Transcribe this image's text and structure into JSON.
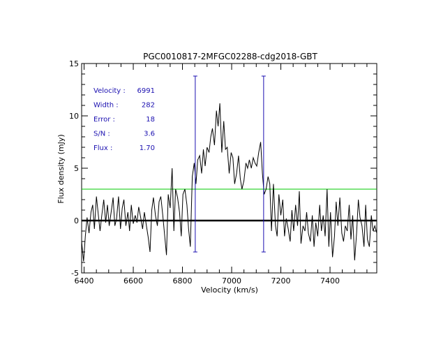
{
  "chart_data": {
    "type": "line",
    "title": "PGC0010817-2MFGC02288-cdg2018-GBT",
    "xlabel": "Velocity (km/s)",
    "ylabel": "Flux density (mJy)",
    "xlim": [
      6390,
      7590
    ],
    "ylim": [
      -5,
      15
    ],
    "x_ticks": [
      6400,
      6600,
      6800,
      7000,
      7200,
      7400
    ],
    "x_tick_labels": [
      "6400",
      "6600",
      "6800",
      "7000",
      "7200",
      "7400"
    ],
    "y_ticks": [
      -5,
      0,
      5,
      10,
      15
    ],
    "y_tick_labels": [
      "-5",
      "0",
      "5",
      "10",
      "15"
    ],
    "zero_line": 0,
    "noise_line": 3.0,
    "line_markers": [
      {
        "name": "low-velocity edge",
        "x": 6852,
        "y_range": [
          -3.0,
          13.8
        ]
      },
      {
        "name": "high-velocity edge",
        "x": 7130,
        "y_range": [
          -3.0,
          13.8
        ]
      }
    ],
    "annotations": [
      {
        "label": "Velocity :",
        "value": "6991"
      },
      {
        "label": "Width  :",
        "value": "282"
      },
      {
        "label": "Error  :",
        "value": "18"
      },
      {
        "label": "S/N    :",
        "value": "3.6"
      },
      {
        "label": "Flux   :",
        "value": "1.70"
      }
    ],
    "series": [
      {
        "name": "spectrum",
        "x": [
          6390,
          6398,
          6405,
          6412,
          6420,
          6428,
          6435,
          6442,
          6450,
          6458,
          6465,
          6472,
          6480,
          6488,
          6495,
          6502,
          6510,
          6518,
          6525,
          6532,
          6540,
          6548,
          6555,
          6562,
          6570,
          6578,
          6585,
          6592,
          6600,
          6608,
          6615,
          6622,
          6630,
          6638,
          6645,
          6652,
          6660,
          6668,
          6675,
          6682,
          6690,
          6698,
          6705,
          6712,
          6720,
          6728,
          6735,
          6742,
          6750,
          6758,
          6765,
          6772,
          6780,
          6788,
          6795,
          6802,
          6810,
          6818,
          6825,
          6832,
          6840,
          6848,
          6855,
          6862,
          6870,
          6878,
          6885,
          6892,
          6900,
          6908,
          6915,
          6922,
          6930,
          6938,
          6945,
          6952,
          6960,
          6968,
          6975,
          6982,
          6990,
          6998,
          7005,
          7012,
          7020,
          7028,
          7035,
          7042,
          7050,
          7058,
          7065,
          7072,
          7080,
          7088,
          7095,
          7102,
          7110,
          7118,
          7125,
          7132,
          7140,
          7148,
          7155,
          7162,
          7170,
          7178,
          7185,
          7192,
          7200,
          7208,
          7215,
          7222,
          7230,
          7238,
          7245,
          7252,
          7260,
          7268,
          7275,
          7282,
          7290,
          7298,
          7305,
          7312,
          7320,
          7328,
          7335,
          7342,
          7350,
          7358,
          7365,
          7372,
          7380,
          7388,
          7395,
          7402,
          7410,
          7418,
          7425,
          7432,
          7440,
          7448,
          7455,
          7462,
          7470,
          7478,
          7485,
          7492,
          7500,
          7508,
          7515,
          7522,
          7530,
          7538,
          7545,
          7552,
          7560,
          7568,
          7575,
          7582,
          7590
        ],
        "y": [
          -2.0,
          -3.9,
          -1.5,
          0.3,
          -1.2,
          0.8,
          1.5,
          -0.8,
          2.3,
          0.5,
          -1.0,
          0.5,
          2.0,
          -0.2,
          1.5,
          -0.5,
          0.8,
          2.2,
          -0.5,
          0.2,
          2.3,
          -0.8,
          1.2,
          2.0,
          -0.5,
          0.8,
          -1.0,
          1.5,
          -0.3,
          0.5,
          -0.2,
          1.3,
          0.3,
          -0.8,
          0.8,
          -0.3,
          -1.5,
          -3.0,
          1.0,
          2.2,
          0.5,
          -0.5,
          1.8,
          2.3,
          0.5,
          -1.5,
          -3.3,
          2.5,
          1.2,
          5.0,
          -1.0,
          3.0,
          2.2,
          0.8,
          -1.5,
          2.5,
          3.0,
          1.5,
          -0.8,
          -2.5,
          4.2,
          5.5,
          3.5,
          5.8,
          6.2,
          4.5,
          6.8,
          5.2,
          7.0,
          6.5,
          8.0,
          8.8,
          7.2,
          10.5,
          9.0,
          11.2,
          6.5,
          9.5,
          6.8,
          7.0,
          4.5,
          6.5,
          6.0,
          3.5,
          4.5,
          6.2,
          4.0,
          3.0,
          3.8,
          5.5,
          5.0,
          5.8,
          5.0,
          6.0,
          5.5,
          5.2,
          6.5,
          7.5,
          4.5,
          2.5,
          3.0,
          4.2,
          3.5,
          -1.0,
          3.5,
          -0.5,
          -1.5,
          2.5,
          0.5,
          2.0,
          -1.5,
          0.2,
          -0.8,
          -2.0,
          1.0,
          -1.0,
          1.5,
          -0.5,
          2.8,
          -2.2,
          -0.5,
          -1.0,
          0.8,
          -1.2,
          -2.0,
          0.5,
          -2.5,
          -0.2,
          -1.5,
          1.5,
          -1.0,
          0.5,
          -1.5,
          3.0,
          -2.5,
          0.8,
          -3.5,
          -1.5,
          1.8,
          -0.5,
          2.2,
          -1.2,
          -2.0,
          -0.5,
          -1.0,
          1.5,
          -1.8,
          0.5,
          -3.8,
          -1.2,
          2.0,
          0.3,
          -0.5,
          -2.5,
          1.5,
          -1.8,
          -2.5,
          0.5,
          -1.0,
          -0.5,
          -1.2
        ]
      }
    ]
  }
}
